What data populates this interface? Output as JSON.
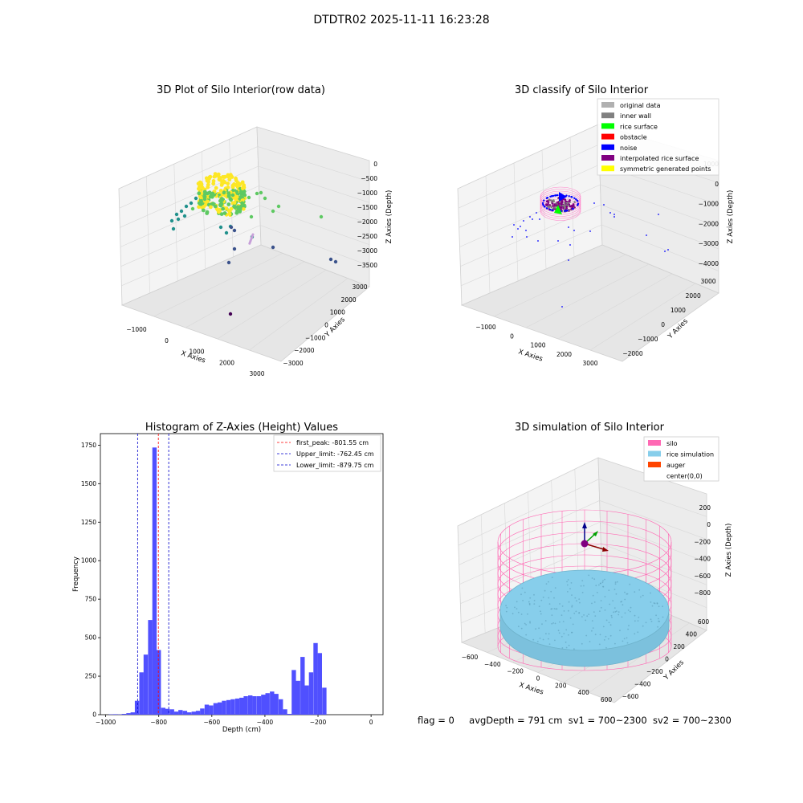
{
  "suptitle": "DTDTR02 2025-11-11 16:23:28",
  "footer": {
    "flag": "flag = 0",
    "avg_depth": "avgDepth = 791 cm",
    "sv1": "sv1 = 700~2300",
    "sv2": "sv2 = 700~2300"
  },
  "chart_data": [
    {
      "type": "scatter",
      "title": "3D Plot of Silo Interior(row data)",
      "xlabel": "X Axies",
      "ylabel": "Y Axies",
      "zlabel": "Z Axies (Depth)",
      "x_ticks": [
        "−1000",
        "0",
        "1000",
        "2000",
        "3000"
      ],
      "y_ticks": [
        "−3000",
        "−2000",
        "−1000",
        "0",
        "1000",
        "2000",
        "3000"
      ],
      "z_ticks": [
        "−3500",
        "−3000",
        "−2500",
        "−2000",
        "−1500",
        "−1000",
        "−500",
        "0"
      ],
      "colormap": [
        "#440154",
        "#3b528b",
        "#21918c",
        "#5ec962",
        "#fde725"
      ]
    },
    {
      "type": "scatter",
      "title": "3D classify of Silo Interior",
      "xlabel": "X Axies",
      "ylabel": "Y Axies",
      "zlabel": "Z Axies (Depth)",
      "x_ticks": [
        "−1000",
        "0",
        "1000",
        "2000",
        "3000"
      ],
      "y_ticks": [
        "−2000",
        "−1000",
        "0",
        "1000",
        "2000",
        "3000"
      ],
      "z_ticks": [
        "−4000",
        "−3000",
        "−2000",
        "−1000",
        "0",
        "1000"
      ],
      "legend_position": "top-right",
      "legend": [
        {
          "name": "original data",
          "color": "#b0b0b0"
        },
        {
          "name": "inner wall",
          "color": "#808080"
        },
        {
          "name": "rice surface",
          "color": "#00ff00"
        },
        {
          "name": "obstacle",
          "color": "#ff0000"
        },
        {
          "name": "noise",
          "color": "#0000ff"
        },
        {
          "name": "interpolated rice surface",
          "color": "#800080"
        },
        {
          "name": "symmetric generated points",
          "color": "#ffff00"
        }
      ]
    },
    {
      "type": "bar",
      "title": "Histogram of Z-Axies (Height) Values",
      "xlabel": "Depth (cm)",
      "ylabel": "Frequency",
      "xlim": [
        -1020,
        45
      ],
      "ylim": [
        0,
        1825
      ],
      "x_ticks": [
        "−1000",
        "−800",
        "−600",
        "−400",
        "−200",
        "0"
      ],
      "x_tick_values": [
        -1000,
        -800,
        -600,
        -400,
        -200,
        0
      ],
      "y_ticks": [
        "0",
        "250",
        "500",
        "750",
        "1000",
        "1250",
        "1500",
        "1750"
      ],
      "y_tick_values": [
        0,
        250,
        500,
        750,
        1000,
        1250,
        1500,
        1750
      ],
      "bar_color": "#5050ff",
      "bin_width": 16.4,
      "bins": [
        {
          "x": -980,
          "v": 2
        },
        {
          "x": -964,
          "v": 3
        },
        {
          "x": -947,
          "v": 2
        },
        {
          "x": -931,
          "v": 5
        },
        {
          "x": -914,
          "v": 10
        },
        {
          "x": -898,
          "v": 15
        },
        {
          "x": -882,
          "v": 90
        },
        {
          "x": -865,
          "v": 275
        },
        {
          "x": -849,
          "v": 390
        },
        {
          "x": -832,
          "v": 615
        },
        {
          "x": -816,
          "v": 1735
        },
        {
          "x": -800,
          "v": 420
        },
        {
          "x": -783,
          "v": 45
        },
        {
          "x": -767,
          "v": 38
        },
        {
          "x": -750,
          "v": 35
        },
        {
          "x": -734,
          "v": 20
        },
        {
          "x": -718,
          "v": 30
        },
        {
          "x": -701,
          "v": 25
        },
        {
          "x": -685,
          "v": 15
        },
        {
          "x": -668,
          "v": 20
        },
        {
          "x": -652,
          "v": 25
        },
        {
          "x": -636,
          "v": 40
        },
        {
          "x": -619,
          "v": 65
        },
        {
          "x": -603,
          "v": 60
        },
        {
          "x": -586,
          "v": 75
        },
        {
          "x": -570,
          "v": 80
        },
        {
          "x": -554,
          "v": 90
        },
        {
          "x": -537,
          "v": 95
        },
        {
          "x": -521,
          "v": 100
        },
        {
          "x": -504,
          "v": 105
        },
        {
          "x": -488,
          "v": 110
        },
        {
          "x": -472,
          "v": 120
        },
        {
          "x": -455,
          "v": 125
        },
        {
          "x": -439,
          "v": 120
        },
        {
          "x": -422,
          "v": 120
        },
        {
          "x": -406,
          "v": 130
        },
        {
          "x": -390,
          "v": 140
        },
        {
          "x": -373,
          "v": 150
        },
        {
          "x": -357,
          "v": 135
        },
        {
          "x": -340,
          "v": 100
        },
        {
          "x": -324,
          "v": 35
        },
        {
          "x": -308,
          "v": 5
        },
        {
          "x": -291,
          "v": 290
        },
        {
          "x": -275,
          "v": 220
        },
        {
          "x": -258,
          "v": 375
        },
        {
          "x": -242,
          "v": 190
        },
        {
          "x": -226,
          "v": 275
        },
        {
          "x": -209,
          "v": 465
        },
        {
          "x": -193,
          "v": 400
        },
        {
          "x": -176,
          "v": 175
        }
      ],
      "vlines": [
        {
          "label": "first_peak: -801.55 cm",
          "x": -801.55,
          "color": "#ff0000"
        },
        {
          "label": "Upper_limit: -762.45 cm",
          "x": -762.45,
          "color": "#0000cc"
        },
        {
          "label": "Lower_limit: -879.75 cm",
          "x": -879.75,
          "color": "#0000cc"
        }
      ],
      "legend_position": "top-right"
    },
    {
      "type": "scatter",
      "title": "3D simulation of Silo Interior",
      "xlabel": "X Axies",
      "ylabel": "Y Axies",
      "zlabel": "Z Axies (Depth)",
      "x_ticks": [
        "−600",
        "−400",
        "−200",
        "0",
        "200",
        "400",
        "600"
      ],
      "y_ticks": [
        "−600",
        "−400",
        "−200",
        "0",
        "200",
        "400",
        "600"
      ],
      "z_ticks": [
        "−800",
        "−600",
        "−400",
        "−200",
        "0",
        "200"
      ],
      "legend_position": "top-right",
      "legend": [
        {
          "name": "silo",
          "color": "#ff69b4"
        },
        {
          "name": "rice simulation",
          "color": "#87ceeb"
        },
        {
          "name": "auger",
          "color": "#ff4500"
        },
        {
          "name": "center(0,0)",
          "color": ""
        }
      ]
    }
  ]
}
